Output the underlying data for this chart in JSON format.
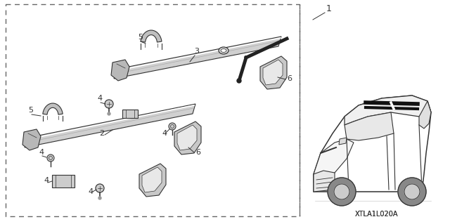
{
  "bg_color": "#ffffff",
  "diagram_color": "#333333",
  "title_code": "XTLA1L020A",
  "figsize": [
    6.4,
    3.19
  ],
  "dpi": 100
}
